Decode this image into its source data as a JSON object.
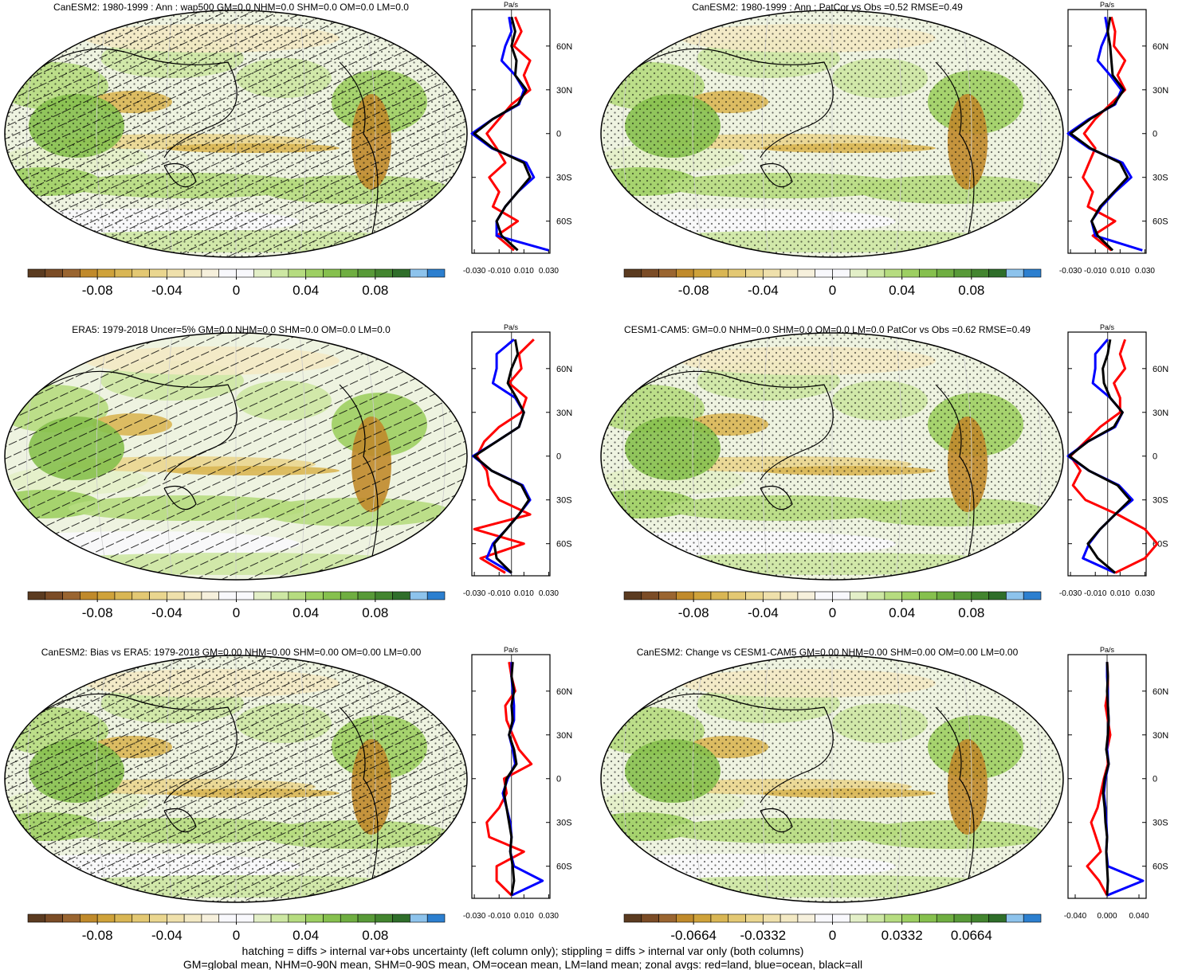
{
  "colorbar_colors": [
    "#5b3b20",
    "#7b4c26",
    "#9a6530",
    "#c08a2b",
    "#cfa23a",
    "#d9b654",
    "#e3c873",
    "#ead68f",
    "#efe0ab",
    "#f3e9c4",
    "#f6f0dc",
    "#f8f8fc",
    "#f8f8fc",
    "#e3efc8",
    "#cde7a3",
    "#b6dc80",
    "#9dcf62",
    "#86c04e",
    "#6fae41",
    "#589a38",
    "#43852f",
    "#2f6e2a",
    "#8dc3ec",
    "#2c7fcf"
  ],
  "notes": [
    "hatching = diffs > internal var+obs uncertainty (left column only); stippling = diffs > internal var only (both columns)",
    "GM=global mean, NHM=0-90N mean, SHM=0-90S mean, OM=ocean mean, LM=land mean; zonal avgs: red=land, blue=ocean, black=all"
  ],
  "chart_data": [
    {
      "type": "line",
      "title": "CanESM2: 1980-1999 : Ann : wap500 GM=0.0 NHM=0.0 SHM=0.0 OM=0.0 LM=0.0",
      "units": "Pa/s",
      "hatching": true,
      "stippling": true,
      "clim": [
        -0.12,
        0.12
      ],
      "cticks": [
        -0.08,
        -0.04,
        0,
        0.04,
        0.08
      ],
      "y": [
        80,
        70,
        60,
        50,
        40,
        30,
        20,
        10,
        0,
        -10,
        -20,
        -30,
        -40,
        -50,
        -60,
        -70,
        -80
      ],
      "ylim": [
        -82,
        85
      ],
      "yticks": [
        {
          "value": 60,
          "label": "60N"
        },
        {
          "value": 30,
          "label": "30N"
        },
        0,
        {
          "value": -30,
          "label": "30S"
        },
        {
          "value": -60,
          "label": "60S"
        }
      ],
      "xlim": [
        -0.032,
        0.031
      ],
      "xticks": [
        {
          "value": -0.03,
          "label": "-0.030"
        },
        {
          "value": -0.01,
          "label": "-0.010"
        },
        {
          "value": 0.01,
          "label": "0.010"
        },
        {
          "value": 0.03,
          "label": "0.030"
        }
      ],
      "series": [
        {
          "color": "#ff0000",
          "values": [
            0.003,
            0.008,
            0.002,
            0.015,
            0.01,
            0.015,
            0.0,
            -0.01,
            -0.02,
            -0.012,
            -0.005,
            -0.018,
            -0.01,
            -0.015,
            0.005,
            -0.012,
            0.002
          ]
        },
        {
          "color": "#0000ff",
          "values": [
            -0.002,
            0.0,
            -0.005,
            -0.008,
            0.003,
            0.01,
            0.006,
            -0.015,
            -0.032,
            -0.016,
            0.012,
            0.018,
            0.005,
            -0.005,
            -0.012,
            -0.012,
            0.03
          ]
        },
        {
          "color": "#000000",
          "values": [
            0.0,
            0.003,
            0.0,
            0.004,
            0.003,
            0.012,
            0.005,
            -0.015,
            -0.03,
            -0.015,
            0.01,
            0.015,
            0.005,
            -0.005,
            -0.012,
            -0.008,
            0.005
          ]
        }
      ]
    },
    {
      "type": "line",
      "title": "CanESM2: 1980-1999 : Ann : PatCor vs Obs =0.52 RMSE=0.49",
      "units": "Pa/s",
      "hatching": false,
      "stippling": true,
      "clim": [
        -0.12,
        0.12
      ],
      "cticks": [
        -0.08,
        -0.04,
        0,
        0.04,
        0.08
      ],
      "y": [
        80,
        70,
        60,
        50,
        40,
        30,
        20,
        10,
        0,
        -10,
        -20,
        -30,
        -40,
        -50,
        -60,
        -70,
        -80
      ],
      "ylim": [
        -82,
        85
      ],
      "yticks": [
        {
          "value": 60,
          "label": "60N"
        },
        {
          "value": 30,
          "label": "30N"
        },
        0,
        {
          "value": -30,
          "label": "30S"
        },
        {
          "value": -60,
          "label": "60S"
        }
      ],
      "xlim": [
        -0.032,
        0.031
      ],
      "xticks": [
        {
          "value": -0.03,
          "label": "-0.030"
        },
        {
          "value": -0.01,
          "label": "-0.010"
        },
        {
          "value": 0.01,
          "label": "0.010"
        },
        {
          "value": 0.03,
          "label": "0.030"
        }
      ],
      "series": [
        {
          "color": "#ff0000",
          "values": [
            0.003,
            0.006,
            0.005,
            0.014,
            0.008,
            0.014,
            0.002,
            -0.01,
            -0.019,
            -0.01,
            -0.015,
            -0.02,
            -0.012,
            -0.016,
            0.006,
            -0.012,
            0.003
          ]
        },
        {
          "color": "#0000ff",
          "values": [
            -0.002,
            0.0,
            -0.005,
            -0.008,
            0.002,
            0.011,
            0.006,
            -0.015,
            -0.032,
            -0.015,
            0.012,
            0.019,
            0.006,
            -0.005,
            -0.013,
            -0.01,
            0.028
          ]
        },
        {
          "color": "#000000",
          "values": [
            0.002,
            0.0,
            0.002,
            0.003,
            0.004,
            0.013,
            0.005,
            -0.014,
            -0.03,
            -0.014,
            0.01,
            0.016,
            0.005,
            -0.006,
            -0.013,
            -0.008,
            0.004
          ]
        }
      ]
    },
    {
      "type": "line",
      "title": "ERA5: 1979-2018 Uncer=5% GM=0.0 NHM=0.0 SHM=0.0 OM=0.0 LM=0.0",
      "units": "Pa/s",
      "hatching": true,
      "stippling": false,
      "clim": [
        -0.12,
        0.12
      ],
      "cticks": [
        -0.08,
        -0.04,
        0,
        0.04,
        0.08
      ],
      "y": [
        80,
        70,
        60,
        50,
        40,
        30,
        20,
        10,
        0,
        -10,
        -20,
        -30,
        -40,
        -50,
        -60,
        -70,
        -80
      ],
      "ylim": [
        -82,
        85
      ],
      "yticks": [
        {
          "value": 60,
          "label": "60N"
        },
        {
          "value": 30,
          "label": "30N"
        },
        0,
        {
          "value": -30,
          "label": "30S"
        },
        {
          "value": -60,
          "label": "60S"
        }
      ],
      "xlim": [
        -0.032,
        0.031
      ],
      "xticks": [
        {
          "value": -0.03,
          "label": "-0.030"
        },
        {
          "value": -0.01,
          "label": "-0.010"
        },
        {
          "value": 0.01,
          "label": "0.010"
        },
        {
          "value": 0.03,
          "label": "0.030"
        }
      ],
      "series": [
        {
          "color": "#ff0000",
          "values": [
            0.018,
            0.006,
            0.008,
            -0.002,
            0.012,
            0.008,
            -0.01,
            -0.022,
            -0.028,
            -0.02,
            -0.018,
            -0.01,
            0.015,
            -0.03,
            0.01,
            -0.025,
            -0.005
          ]
        },
        {
          "color": "#0000ff",
          "values": [
            0.002,
            -0.012,
            -0.012,
            -0.015,
            0.003,
            0.01,
            0.006,
            -0.012,
            -0.031,
            -0.016,
            0.009,
            0.015,
            0.006,
            -0.004,
            -0.015,
            -0.02,
            0.0
          ]
        },
        {
          "color": "#000000",
          "values": [
            0.003,
            0.005,
            0.0,
            -0.003,
            0.004,
            0.01,
            0.006,
            -0.012,
            -0.03,
            -0.016,
            0.008,
            0.014,
            0.006,
            -0.004,
            -0.014,
            -0.012,
            0.0
          ]
        }
      ]
    },
    {
      "type": "line",
      "title": "CESM1-CAM5: GM=0.0 NHM=0.0 SHM=0.0 OM=0.0 LM=0.0 PatCor vs Obs =0.62 RMSE=0.49",
      "units": "Pa/s",
      "hatching": false,
      "stippling": true,
      "clim": [
        -0.12,
        0.12
      ],
      "cticks": [
        -0.08,
        -0.04,
        0,
        0.04,
        0.08
      ],
      "y": [
        80,
        70,
        60,
        50,
        40,
        30,
        20,
        10,
        0,
        -10,
        -20,
        -30,
        -40,
        -50,
        -60,
        -70,
        -80
      ],
      "ylim": [
        -82,
        85
      ],
      "yticks": [
        {
          "value": 60,
          "label": "60N"
        },
        {
          "value": 30,
          "label": "30N"
        },
        0,
        {
          "value": -30,
          "label": "30S"
        },
        {
          "value": -60,
          "label": "60S"
        }
      ],
      "xlim": [
        -0.032,
        0.031
      ],
      "xticks": [
        {
          "value": -0.03,
          "label": "-0.030"
        },
        {
          "value": -0.01,
          "label": "-0.010"
        },
        {
          "value": 0.01,
          "label": "0.010"
        },
        {
          "value": 0.03,
          "label": "0.030"
        }
      ],
      "series": [
        {
          "color": "#ff0000",
          "values": [
            0.014,
            0.01,
            0.014,
            0.005,
            0.01,
            0.01,
            -0.006,
            -0.018,
            -0.03,
            -0.022,
            -0.028,
            -0.018,
            0.008,
            0.03,
            0.04,
            0.03,
            0.006
          ]
        },
        {
          "color": "#0000ff",
          "values": [
            0.0,
            -0.01,
            -0.01,
            -0.012,
            0.002,
            0.012,
            0.006,
            -0.016,
            -0.032,
            -0.015,
            0.009,
            0.02,
            0.006,
            -0.006,
            -0.015,
            -0.02,
            0.006
          ]
        },
        {
          "color": "#000000",
          "values": [
            0.002,
            0.0,
            -0.004,
            -0.003,
            0.002,
            0.012,
            0.005,
            -0.016,
            -0.031,
            -0.015,
            0.008,
            0.018,
            0.006,
            -0.006,
            -0.016,
            -0.008,
            0.006
          ]
        }
      ]
    },
    {
      "type": "line",
      "title": "CanESM2: Bias vs ERA5: 1979-2018 GM=0.00 NHM=0.00 SHM=0.00 OM=0.00 LM=0.00",
      "units": "Pa/s",
      "hatching": true,
      "stippling": true,
      "clim": [
        -0.12,
        0.12
      ],
      "cticks": [
        -0.08,
        -0.04,
        0,
        0.04,
        0.08
      ],
      "y": [
        80,
        70,
        60,
        50,
        40,
        30,
        20,
        10,
        0,
        -10,
        -20,
        -30,
        -40,
        -50,
        -60,
        -70,
        -80
      ],
      "ylim": [
        -82,
        85
      ],
      "yticks": [
        {
          "value": 60,
          "label": "60N"
        },
        {
          "value": 30,
          "label": "30N"
        },
        0,
        {
          "value": -30,
          "label": "30S"
        },
        {
          "value": -60,
          "label": "60S"
        }
      ],
      "xlim": [
        -0.032,
        0.031
      ],
      "xticks": [
        {
          "value": -0.03,
          "label": "-0.030"
        },
        {
          "value": -0.01,
          "label": "-0.010"
        },
        {
          "value": 0.01,
          "label": "0.010"
        },
        {
          "value": 0.03,
          "label": "0.030"
        }
      ],
      "series": [
        {
          "color": "#ff0000",
          "values": [
            -0.002,
            0.0,
            0.003,
            -0.005,
            -0.004,
            0.001,
            0.006,
            0.016,
            -0.006,
            -0.004,
            -0.01,
            -0.02,
            -0.018,
            0.01,
            -0.012,
            -0.012,
            0.0
          ]
        },
        {
          "color": "#0000ff",
          "values": [
            0.0,
            0.0,
            0.001,
            0.002,
            0.002,
            -0.002,
            0.001,
            0.003,
            -0.003,
            -0.007,
            -0.004,
            -0.001,
            0.0,
            -0.001,
            0.002,
            0.025,
            0.0
          ]
        },
        {
          "color": "#000000",
          "values": [
            0.001,
            0.0,
            0.002,
            0.0,
            0.001,
            -0.002,
            0.002,
            0.004,
            -0.004,
            -0.006,
            -0.004,
            -0.002,
            0.0,
            -0.001,
            0.001,
            0.002,
            0.0
          ]
        }
      ]
    },
    {
      "type": "line",
      "title": "CanESM2: Change vs CESM1-CAM5 GM=0.00 NHM=0.00 SHM=0.00 OM=0.00 LM=0.00",
      "units": "Pa/s",
      "hatching": false,
      "stippling": true,
      "clim": [
        -0.0996,
        0.0996
      ],
      "cticks": [
        -0.0664,
        -0.0332,
        0,
        0.0332,
        0.0664
      ],
      "y": [
        80,
        70,
        60,
        50,
        40,
        30,
        20,
        10,
        0,
        -10,
        -20,
        -30,
        -40,
        -50,
        -60,
        -70,
        -80
      ],
      "ylim": [
        -82,
        85
      ],
      "yticks": [
        {
          "value": 60,
          "label": "60N"
        },
        {
          "value": 30,
          "label": "30N"
        },
        0,
        {
          "value": -30,
          "label": "30S"
        },
        {
          "value": -60,
          "label": "60S"
        }
      ],
      "xlim": [
        -0.049,
        0.049
      ],
      "xticks": [
        {
          "value": -0.04,
          "label": "-0.040"
        },
        {
          "value": 0,
          "label": "0.000"
        },
        {
          "value": 0.04,
          "label": "0.040"
        }
      ],
      "series": [
        {
          "color": "#ff0000",
          "values": [
            0.0,
            0.001,
            0.001,
            -0.002,
            0.001,
            0.004,
            0.0,
            0.001,
            -0.004,
            -0.008,
            -0.012,
            -0.02,
            -0.014,
            -0.008,
            -0.025,
            -0.01,
            0.0
          ]
        },
        {
          "color": "#0000ff",
          "values": [
            0.0,
            0.0,
            0.001,
            0.001,
            0.002,
            0.001,
            0.0,
            0.002,
            -0.002,
            -0.004,
            -0.002,
            -0.001,
            0.0,
            -0.001,
            0.001,
            0.045,
            0.0
          ]
        },
        {
          "color": "#000000",
          "values": [
            0.0,
            0.001,
            0.0,
            0.001,
            0.002,
            0.001,
            -0.001,
            0.002,
            -0.003,
            -0.005,
            -0.003,
            -0.002,
            0.0,
            -0.001,
            0.0,
            0.001,
            0.0
          ]
        }
      ]
    }
  ]
}
